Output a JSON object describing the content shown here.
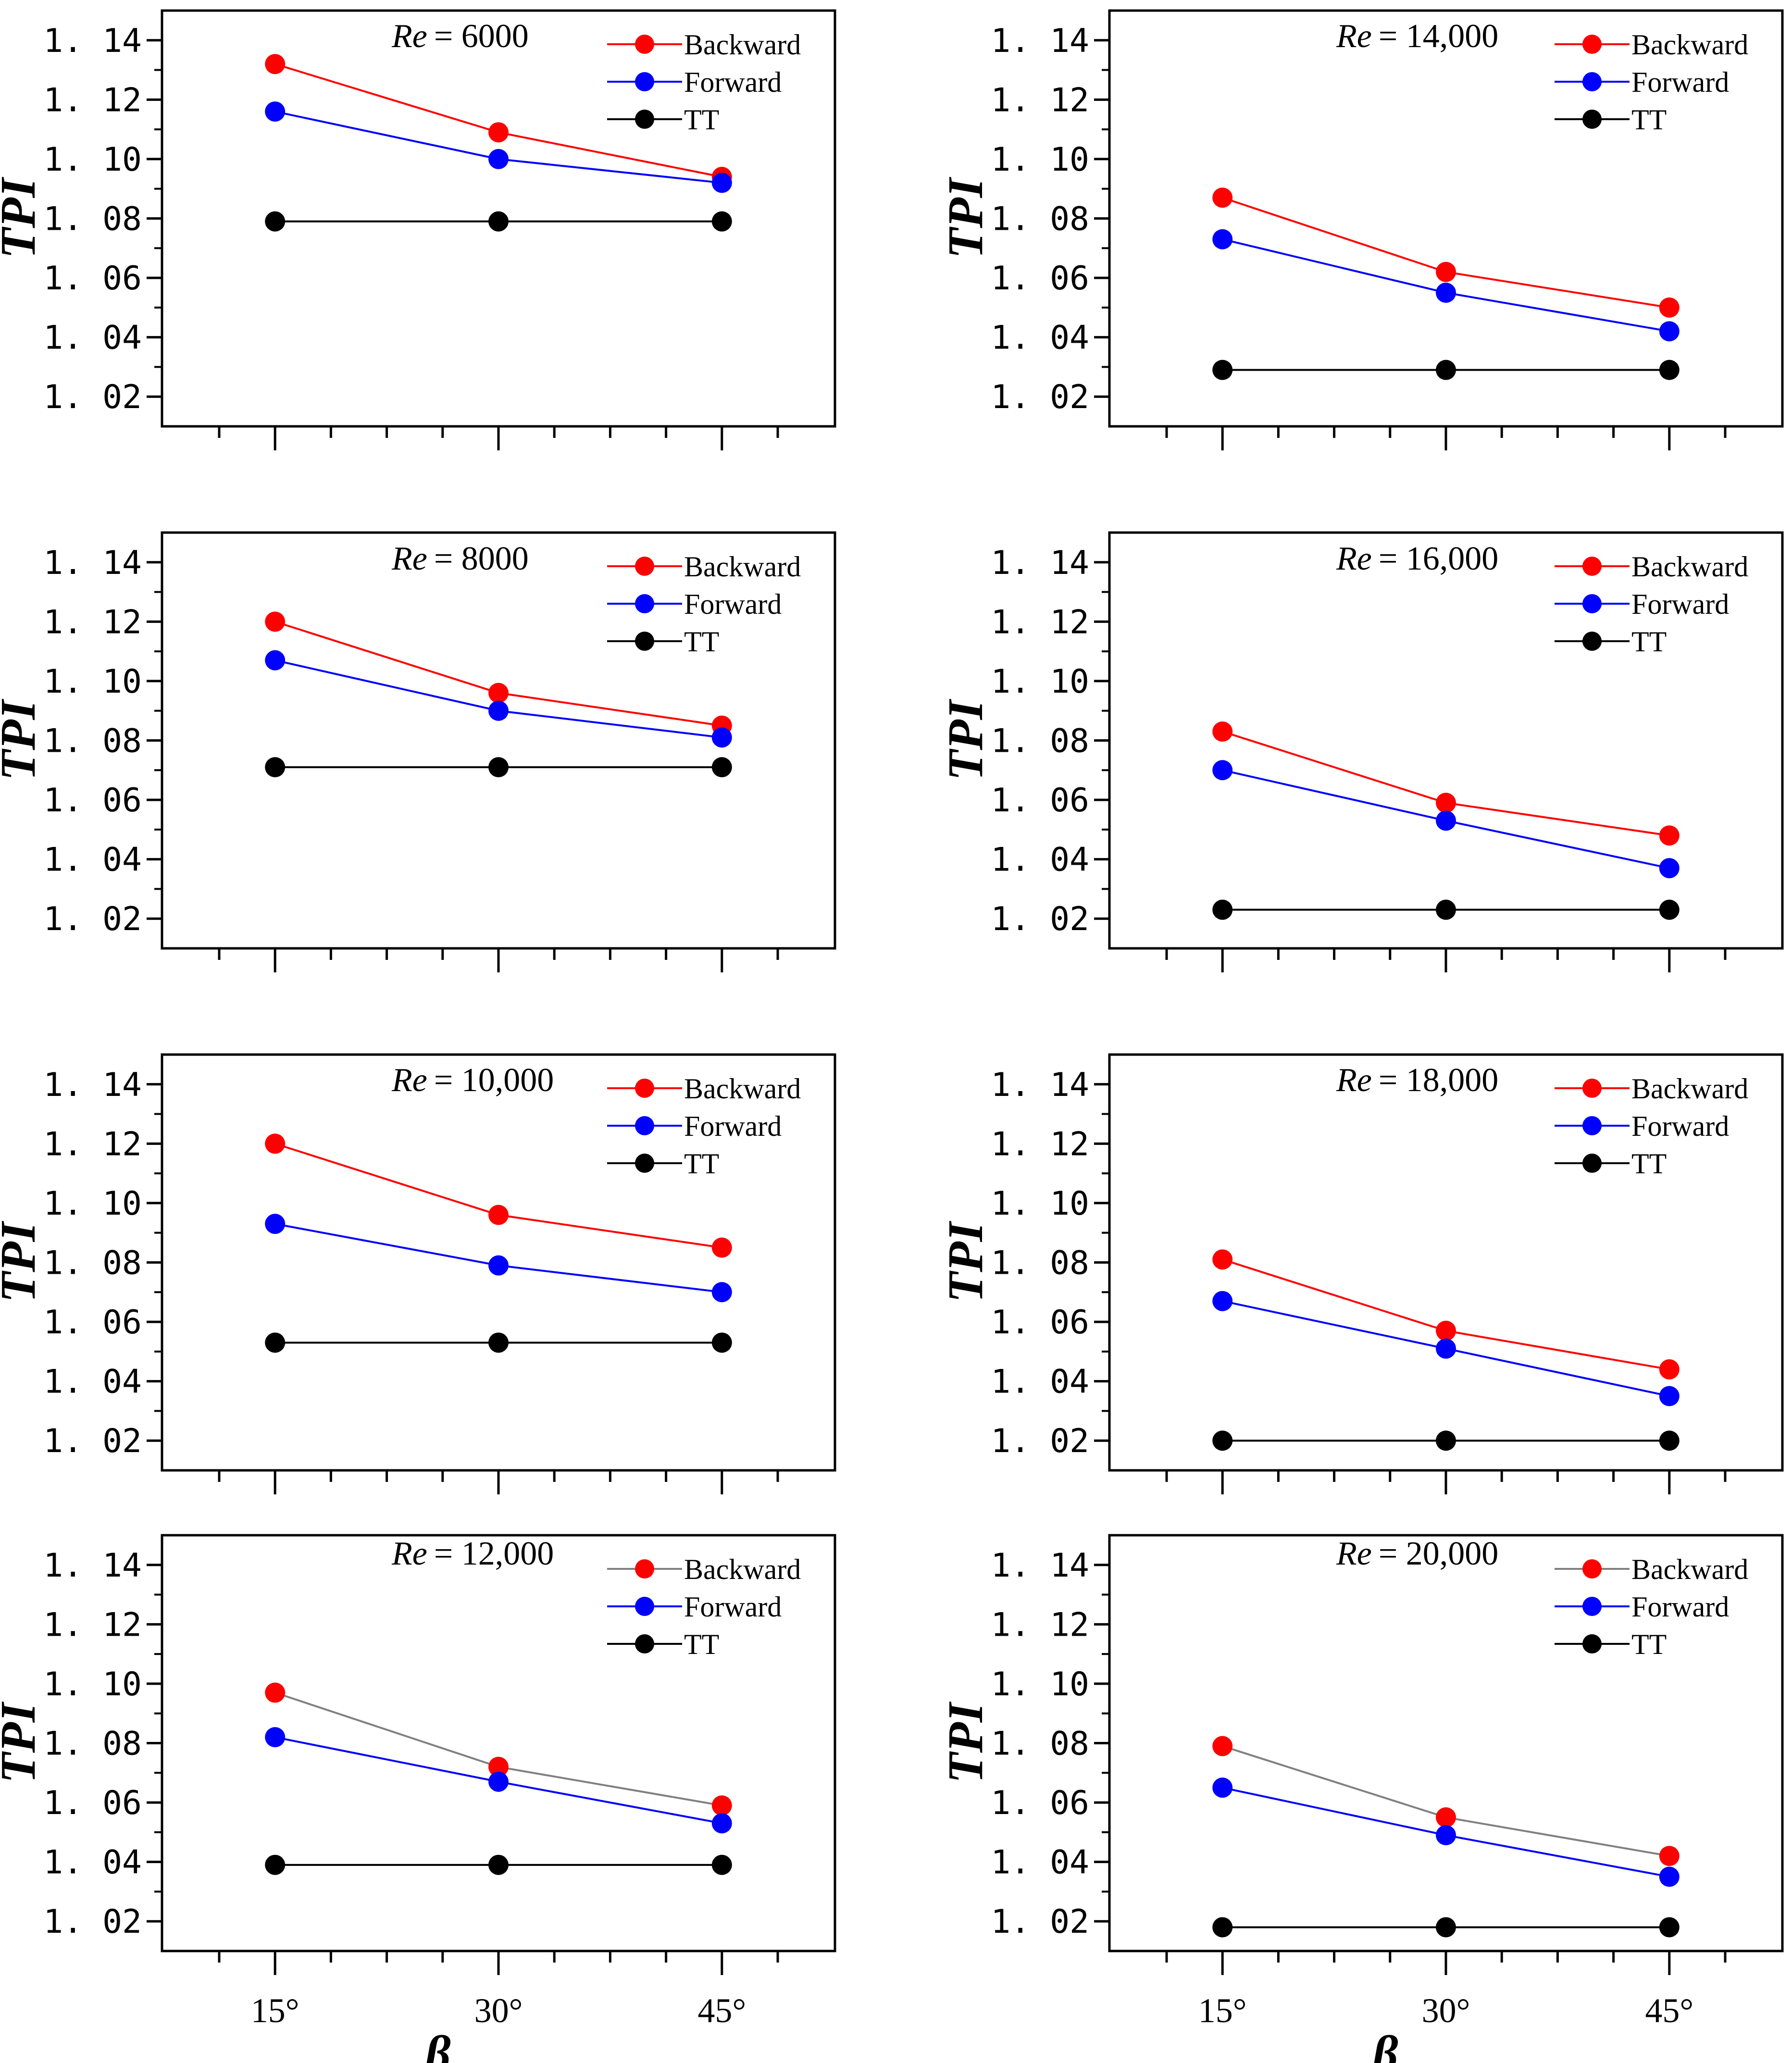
{
  "figure": {
    "ylabel": "TPI",
    "xlabel": "β"
  },
  "chart_data": [
    {
      "type": "line",
      "title_prefix": "Re",
      "title_value": "= 6000",
      "categories": [
        "15°",
        "30°",
        "45°"
      ],
      "yticks": [
        "1. 02",
        "1. 04",
        "1. 06",
        "1. 08",
        "1. 10",
        "1. 12",
        "1. 14"
      ],
      "ylim": [
        1.01,
        1.15
      ],
      "legend_position": "top-right",
      "series": [
        {
          "name": "Backward",
          "color": "#ff0000",
          "line_color": "#ff0000",
          "values": [
            1.132,
            1.109,
            1.094
          ]
        },
        {
          "name": "Forward",
          "color": "#0000ff",
          "line_color": "#0000ff",
          "values": [
            1.116,
            1.1,
            1.092
          ]
        },
        {
          "name": "TT",
          "color": "#000000",
          "line_color": "#000000",
          "values": [
            1.079,
            1.079,
            1.079
          ]
        }
      ]
    },
    {
      "type": "line",
      "title_prefix": "Re",
      "title_value": "= 14,000",
      "categories": [
        "15°",
        "30°",
        "45°"
      ],
      "yticks": [
        "1. 02",
        "1. 04",
        "1. 06",
        "1. 08",
        "1. 10",
        "1. 12",
        "1. 14"
      ],
      "ylim": [
        1.01,
        1.15
      ],
      "legend_position": "top-right",
      "series": [
        {
          "name": "Backward",
          "color": "#ff0000",
          "line_color": "#ff0000",
          "values": [
            1.087,
            1.062,
            1.05
          ]
        },
        {
          "name": "Forward",
          "color": "#0000ff",
          "line_color": "#0000ff",
          "values": [
            1.073,
            1.055,
            1.042
          ]
        },
        {
          "name": "TT",
          "color": "#000000",
          "line_color": "#000000",
          "values": [
            1.029,
            1.029,
            1.029
          ]
        }
      ]
    },
    {
      "type": "line",
      "title_prefix": "Re",
      "title_value": "= 8000",
      "categories": [
        "15°",
        "30°",
        "45°"
      ],
      "yticks": [
        "1. 02",
        "1. 04",
        "1. 06",
        "1. 08",
        "1. 10",
        "1. 12",
        "1. 14"
      ],
      "ylim": [
        1.01,
        1.15
      ],
      "legend_position": "top-right",
      "series": [
        {
          "name": "Backward",
          "color": "#ff0000",
          "line_color": "#ff0000",
          "values": [
            1.12,
            1.096,
            1.085
          ]
        },
        {
          "name": "Forward",
          "color": "#0000ff",
          "line_color": "#0000ff",
          "values": [
            1.107,
            1.09,
            1.081
          ]
        },
        {
          "name": "TT",
          "color": "#000000",
          "line_color": "#000000",
          "values": [
            1.071,
            1.071,
            1.071
          ]
        }
      ]
    },
    {
      "type": "line",
      "title_prefix": "Re",
      "title_value": "= 16,000",
      "categories": [
        "15°",
        "30°",
        "45°"
      ],
      "yticks": [
        "1. 02",
        "1. 04",
        "1. 06",
        "1. 08",
        "1. 10",
        "1. 12",
        "1. 14"
      ],
      "ylim": [
        1.01,
        1.15
      ],
      "legend_position": "top-right",
      "series": [
        {
          "name": "Backward",
          "color": "#ff0000",
          "line_color": "#ff0000",
          "values": [
            1.083,
            1.059,
            1.048
          ]
        },
        {
          "name": "Forward",
          "color": "#0000ff",
          "line_color": "#0000ff",
          "values": [
            1.07,
            1.053,
            1.037
          ]
        },
        {
          "name": "TT",
          "color": "#000000",
          "line_color": "#000000",
          "values": [
            1.023,
            1.023,
            1.023
          ]
        }
      ]
    },
    {
      "type": "line",
      "title_prefix": "Re",
      "title_value": "= 10,000",
      "categories": [
        "15°",
        "30°",
        "45°"
      ],
      "yticks": [
        "1. 02",
        "1. 04",
        "1. 06",
        "1. 08",
        "1. 10",
        "1. 12",
        "1. 14"
      ],
      "ylim": [
        1.01,
        1.15
      ],
      "legend_position": "top-right",
      "series": [
        {
          "name": "Backward",
          "color": "#ff0000",
          "line_color": "#ff0000",
          "values": [
            1.12,
            1.096,
            1.085
          ]
        },
        {
          "name": "Forward",
          "color": "#0000ff",
          "line_color": "#0000ff",
          "values": [
            1.093,
            1.079,
            1.07
          ]
        },
        {
          "name": "TT",
          "color": "#000000",
          "line_color": "#000000",
          "values": [
            1.053,
            1.053,
            1.053
          ]
        }
      ]
    },
    {
      "type": "line",
      "title_prefix": "Re",
      "title_value": "= 18,000",
      "categories": [
        "15°",
        "30°",
        "45°"
      ],
      "yticks": [
        "1. 02",
        "1. 04",
        "1. 06",
        "1. 08",
        "1. 10",
        "1. 12",
        "1. 14"
      ],
      "ylim": [
        1.01,
        1.15
      ],
      "legend_position": "top-right",
      "series": [
        {
          "name": "Backward",
          "color": "#ff0000",
          "line_color": "#ff0000",
          "values": [
            1.081,
            1.057,
            1.044
          ]
        },
        {
          "name": "Forward",
          "color": "#0000ff",
          "line_color": "#0000ff",
          "values": [
            1.067,
            1.051,
            1.035
          ]
        },
        {
          "name": "TT",
          "color": "#000000",
          "line_color": "#000000",
          "values": [
            1.02,
            1.02,
            1.02
          ]
        }
      ]
    },
    {
      "type": "line",
      "title_prefix": "Re",
      "title_value": "= 12,000",
      "categories": [
        "15°",
        "30°",
        "45°"
      ],
      "yticks": [
        "1. 02",
        "1. 04",
        "1. 06",
        "1. 08",
        "1. 10",
        "1. 12",
        "1. 14"
      ],
      "ylim": [
        1.01,
        1.15
      ],
      "legend_position": "top-right",
      "series": [
        {
          "name": "Backward",
          "color": "#ff0000",
          "line_color": "#808080",
          "values": [
            1.097,
            1.072,
            1.059
          ]
        },
        {
          "name": "Forward",
          "color": "#0000ff",
          "line_color": "#0000ff",
          "values": [
            1.082,
            1.067,
            1.053
          ]
        },
        {
          "name": "TT",
          "color": "#000000",
          "line_color": "#000000",
          "values": [
            1.039,
            1.039,
            1.039
          ]
        }
      ]
    },
    {
      "type": "line",
      "title_prefix": "Re",
      "title_value": "= 20,000",
      "categories": [
        "15°",
        "30°",
        "45°"
      ],
      "yticks": [
        "1. 02",
        "1. 04",
        "1. 06",
        "1. 08",
        "1. 10",
        "1. 12",
        "1. 14"
      ],
      "ylim": [
        1.01,
        1.15
      ],
      "legend_position": "top-right",
      "series": [
        {
          "name": "Backward",
          "color": "#ff0000",
          "line_color": "#808080",
          "values": [
            1.079,
            1.055,
            1.042
          ]
        },
        {
          "name": "Forward",
          "color": "#0000ff",
          "line_color": "#0000ff",
          "values": [
            1.065,
            1.049,
            1.035
          ]
        },
        {
          "name": "TT",
          "color": "#000000",
          "line_color": "#000000",
          "values": [
            1.018,
            1.018,
            1.018
          ]
        }
      ]
    }
  ]
}
